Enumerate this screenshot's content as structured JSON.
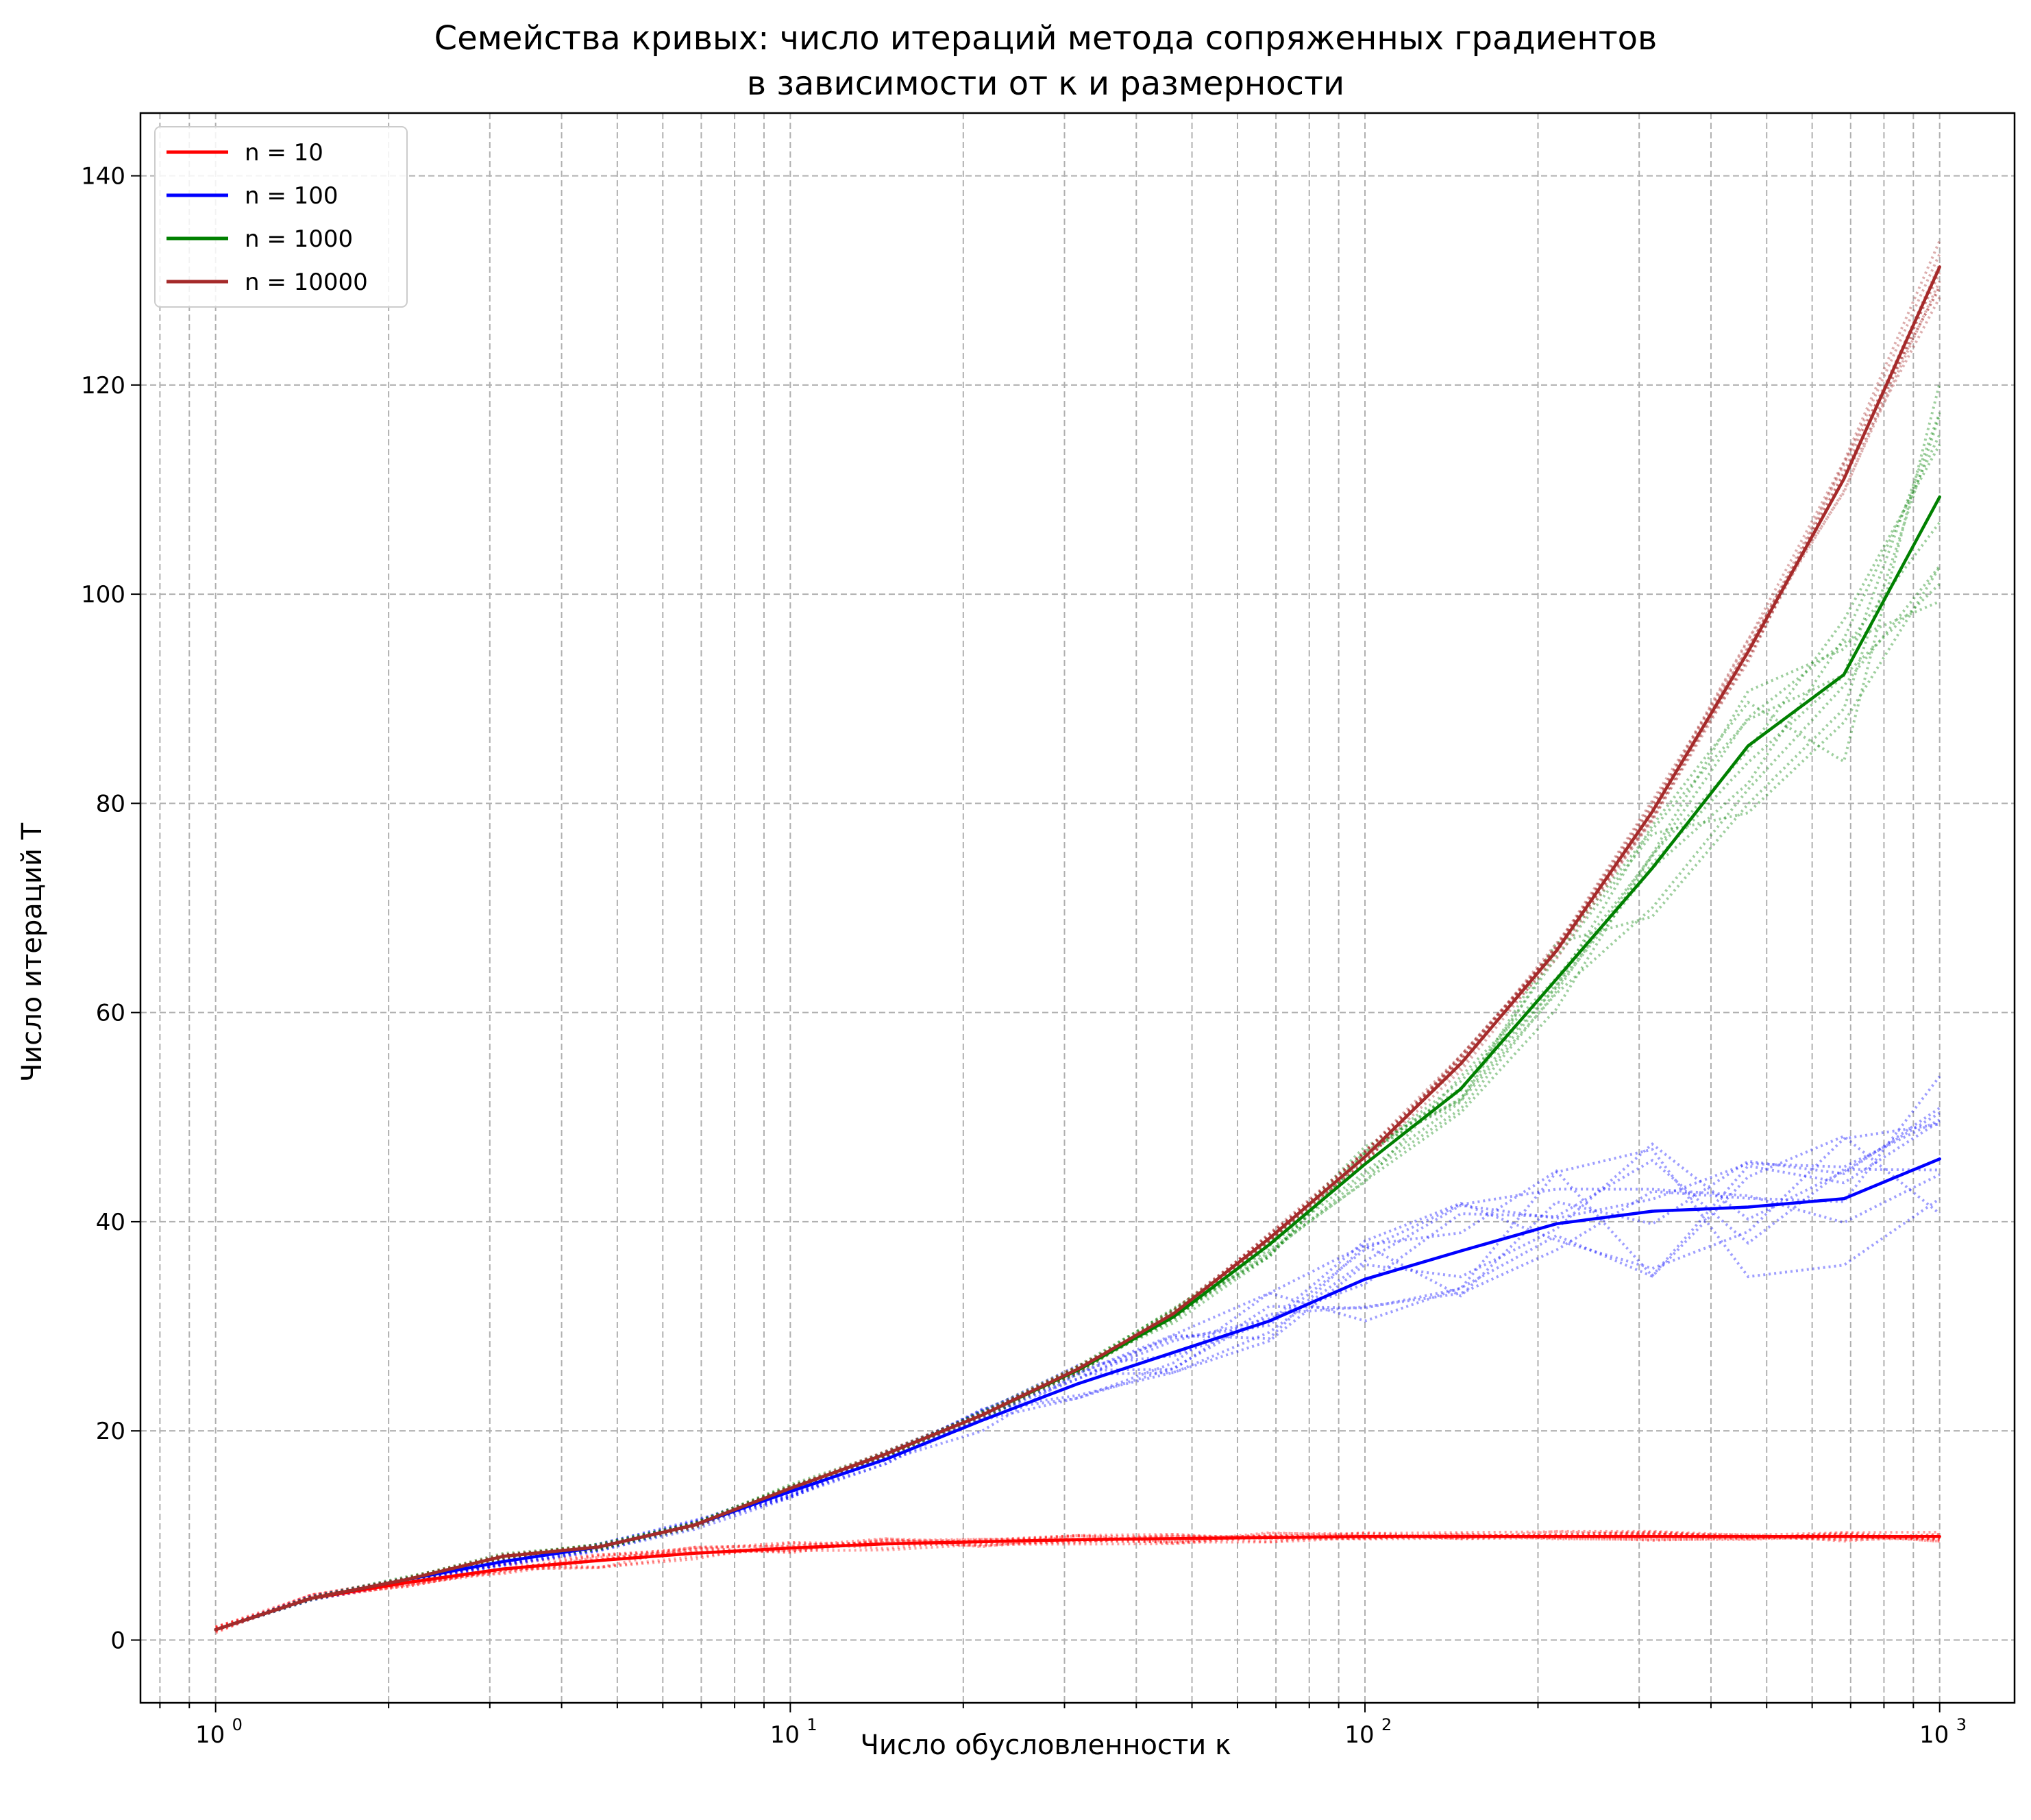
{
  "chart_data": {
    "type": "line",
    "title_line1": "Семейства кривых: число итераций метода сопряженных градиентов",
    "title_line2": "в зависимости от κ и размерности",
    "xlabel": "Число обусловленности κ",
    "ylabel": "Число итераций T",
    "x_scale": "log",
    "xlim": [
      0.74,
      1350
    ],
    "ylim": [
      -6,
      146
    ],
    "grid": true,
    "legend_position": "upper-left",
    "x_ticks": [
      {
        "value": 1,
        "base": "10",
        "exp": "0"
      },
      {
        "value": 10,
        "base": "10",
        "exp": "1"
      },
      {
        "value": 100,
        "base": "10",
        "exp": "2"
      },
      {
        "value": 1000,
        "base": "10",
        "exp": "3"
      }
    ],
    "y_ticks": [
      {
        "value": 0,
        "label": "0"
      },
      {
        "value": 20,
        "label": "20"
      },
      {
        "value": 40,
        "label": "40"
      },
      {
        "value": 60,
        "label": "60"
      },
      {
        "value": 80,
        "label": "80"
      },
      {
        "value": 100,
        "label": "100"
      },
      {
        "value": 120,
        "label": "120"
      },
      {
        "value": 140,
        "label": "140"
      }
    ],
    "x": [
      1,
      1.468,
      2.154,
      3.162,
      4.642,
      6.813,
      10,
      14.68,
      21.54,
      31.62,
      46.42,
      68.13,
      100,
      146.8,
      215.4,
      316.2,
      464.2,
      681.3,
      1000
    ],
    "series": [
      {
        "name": "n = 10",
        "color": "#ff0000",
        "values": [
          1,
          4,
          5.5,
          6.8,
          7.6,
          8.3,
          8.8,
          9.2,
          9.4,
          9.6,
          9.7,
          9.8,
          9.9,
          9.9,
          9.9,
          9.9,
          9.9,
          9.9,
          9.9
        ]
      },
      {
        "name": "n = 100",
        "color": "#0000ff",
        "values": [
          1,
          4,
          5.8,
          7.5,
          8.9,
          11,
          14.2,
          17.3,
          21,
          24.5,
          27.5,
          30.5,
          34.5,
          37.2,
          39.8,
          41,
          41.4,
          42.2,
          46
        ]
      },
      {
        "name": "n = 1000",
        "color": "#008000",
        "values": [
          1,
          4,
          5.8,
          8,
          8.9,
          11,
          14.5,
          17.8,
          21.5,
          25.8,
          30.9,
          37.8,
          45.5,
          52.7,
          63.2,
          73.8,
          85.5,
          92.3,
          109.3
        ]
      },
      {
        "name": "n = 10000",
        "color": "#a52a2a",
        "values": [
          1,
          4,
          5.8,
          8,
          8.9,
          11,
          14.5,
          17.8,
          21.5,
          25.9,
          31.2,
          38.4,
          46.2,
          55.1,
          65.9,
          79.2,
          94.5,
          111,
          131.3
        ]
      }
    ]
  }
}
